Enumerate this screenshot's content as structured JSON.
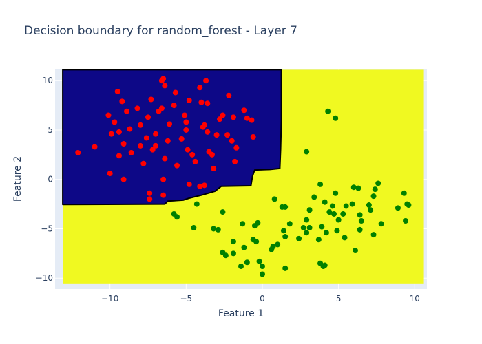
{
  "chart_data": {
    "type": "scatter",
    "title": "Decision boundary for random_forest - Layer 7",
    "xlabel": "Feature 1",
    "ylabel": "Feature 2",
    "xlim": [
      -13.6,
      10.8
    ],
    "ylim": [
      -11.1,
      11.2
    ],
    "x_ticks": [
      -10,
      -5,
      0,
      5,
      10
    ],
    "y_ticks": [
      -10,
      -5,
      0,
      5,
      10
    ],
    "grid": true,
    "colors": {
      "plot_bg": "#e5ecf6",
      "region_class0": "#0d0887",
      "region_class1": "#f0f921",
      "class0_points": "#ff0000",
      "class1_points": "#008000",
      "boundary": "#000000"
    },
    "decision_regions": {
      "x_range": [
        -13.1,
        10.6
      ],
      "y_range": [
        -10.6,
        11.1
      ],
      "class0_region_vertices": [
        [
          -13.1,
          11.1
        ],
        [
          1.25,
          11.1
        ],
        [
          1.25,
          6.0
        ],
        [
          1.2,
          3.0
        ],
        [
          1.15,
          1.1
        ],
        [
          0.5,
          1.0
        ],
        [
          -0.5,
          0.95
        ],
        [
          -0.65,
          0.3
        ],
        [
          -0.75,
          -0.65
        ],
        [
          -2.7,
          -0.7
        ],
        [
          -3.1,
          -1.2
        ],
        [
          -4.0,
          -1.6
        ],
        [
          -4.8,
          -1.9
        ],
        [
          -5.2,
          -2.1
        ],
        [
          -6.2,
          -2.2
        ],
        [
          -6.4,
          -2.5
        ],
        [
          -13.1,
          -2.55
        ]
      ]
    },
    "series": [
      {
        "class": 0,
        "points": [
          [
            -12.1,
            2.7
          ],
          [
            -11.0,
            3.3
          ],
          [
            -10.1,
            6.5
          ],
          [
            -9.9,
            4.6
          ],
          [
            -9.7,
            5.8
          ],
          [
            -9.5,
            8.9
          ],
          [
            -9.4,
            4.8
          ],
          [
            -9.4,
            2.4
          ],
          [
            -10.0,
            0.6
          ],
          [
            -9.2,
            7.9
          ],
          [
            -9.1,
            3.6
          ],
          [
            -9.1,
            0.0
          ],
          [
            -8.9,
            6.9
          ],
          [
            -8.7,
            5.1
          ],
          [
            -8.6,
            2.7
          ],
          [
            -8.2,
            7.2
          ],
          [
            -8.0,
            5.5
          ],
          [
            -8.0,
            3.4
          ],
          [
            -7.8,
            1.6
          ],
          [
            -7.6,
            4.2
          ],
          [
            -7.5,
            6.3
          ],
          [
            -7.3,
            8.1
          ],
          [
            -7.2,
            3.0
          ],
          [
            -7.0,
            4.6
          ],
          [
            -7.0,
            3.4
          ],
          [
            -6.8,
            6.9
          ],
          [
            -6.6,
            7.2
          ],
          [
            -6.5,
            10.2
          ],
          [
            -6.4,
            9.5
          ],
          [
            -6.4,
            2.1
          ],
          [
            -6.5,
            0.0
          ],
          [
            -6.2,
            3.9
          ],
          [
            -6.1,
            5.6
          ],
          [
            -5.8,
            7.5
          ],
          [
            -5.7,
            8.8
          ],
          [
            -5.6,
            1.4
          ],
          [
            -5.3,
            4.1
          ],
          [
            -5.1,
            6.5
          ],
          [
            -5.0,
            5.8
          ],
          [
            -5.0,
            5.0
          ],
          [
            -4.9,
            3.0
          ],
          [
            -4.8,
            8.0
          ],
          [
            -4.6,
            2.5
          ],
          [
            -4.4,
            1.8
          ],
          [
            -4.1,
            9.3
          ],
          [
            -4.0,
            7.8
          ],
          [
            -3.9,
            5.3
          ],
          [
            -3.8,
            5.5
          ],
          [
            -3.7,
            10.0
          ],
          [
            -3.6,
            7.7
          ],
          [
            -3.6,
            4.8
          ],
          [
            -3.5,
            2.8
          ],
          [
            -3.3,
            2.5
          ],
          [
            -3.2,
            1.1
          ],
          [
            -3.0,
            4.5
          ],
          [
            -2.8,
            6.1
          ],
          [
            -2.6,
            6.5
          ],
          [
            -2.3,
            4.5
          ],
          [
            -2.2,
            8.5
          ],
          [
            -2.0,
            3.9
          ],
          [
            -1.9,
            6.3
          ],
          [
            -1.8,
            1.8
          ],
          [
            -1.7,
            3.2
          ],
          [
            -1.2,
            7.0
          ],
          [
            -1.0,
            6.2
          ],
          [
            -0.7,
            6.0
          ],
          [
            -0.6,
            4.3
          ],
          [
            -4.8,
            -0.5
          ],
          [
            -4.1,
            -0.7
          ],
          [
            -3.8,
            -0.6
          ],
          [
            -7.4,
            -1.4
          ],
          [
            -7.4,
            -2.0
          ],
          [
            -6.5,
            -1.6
          ],
          [
            -6.6,
            10.0
          ]
        ]
      },
      {
        "class": 1,
        "points": [
          [
            -5.8,
            -3.5
          ],
          [
            -5.6,
            -3.8
          ],
          [
            -4.5,
            -4.9
          ],
          [
            -4.3,
            -2.5
          ],
          [
            -3.2,
            -5.0
          ],
          [
            -2.9,
            -5.1
          ],
          [
            -2.6,
            -3.3
          ],
          [
            -2.6,
            -7.4
          ],
          [
            -2.4,
            -7.7
          ],
          [
            -1.9,
            -6.3
          ],
          [
            -1.9,
            -7.5
          ],
          [
            -1.3,
            -4.5
          ],
          [
            -1.2,
            -6.9
          ],
          [
            -1.0,
            -8.4
          ],
          [
            -1.4,
            -8.8
          ],
          [
            -0.6,
            -6.1
          ],
          [
            -0.5,
            -4.7
          ],
          [
            -0.3,
            -4.4
          ],
          [
            -0.4,
            -6.3
          ],
          [
            -0.2,
            -8.3
          ],
          [
            0.0,
            -8.8
          ],
          [
            0.0,
            -9.6
          ],
          [
            0.6,
            -7.1
          ],
          [
            0.7,
            -6.8
          ],
          [
            0.8,
            -2.0
          ],
          [
            1.0,
            -6.6
          ],
          [
            1.3,
            -2.8
          ],
          [
            1.4,
            -5.2
          ],
          [
            1.5,
            -2.8
          ],
          [
            1.5,
            -5.8
          ],
          [
            1.5,
            -9.0
          ],
          [
            1.8,
            -4.5
          ],
          [
            2.4,
            -6.0
          ],
          [
            2.7,
            -4.9
          ],
          [
            2.9,
            -5.4
          ],
          [
            2.9,
            -4.1
          ],
          [
            3.1,
            -3.1
          ],
          [
            3.1,
            -4.9
          ],
          [
            3.4,
            -1.8
          ],
          [
            3.7,
            -6.1
          ],
          [
            3.8,
            -8.5
          ],
          [
            3.8,
            -0.5
          ],
          [
            3.9,
            -4.8
          ],
          [
            4.0,
            -8.8
          ],
          [
            4.1,
            -8.7
          ],
          [
            4.1,
            -2.3
          ],
          [
            4.2,
            -5.4
          ],
          [
            4.4,
            -3.3
          ],
          [
            4.6,
            -2.7
          ],
          [
            4.7,
            -3.5
          ],
          [
            4.8,
            -1.4
          ],
          [
            4.9,
            -5.2
          ],
          [
            5.0,
            -4.1
          ],
          [
            5.3,
            -3.5
          ],
          [
            5.4,
            -5.9
          ],
          [
            5.5,
            -2.7
          ],
          [
            5.9,
            -2.5
          ],
          [
            6.0,
            -0.8
          ],
          [
            6.1,
            -7.2
          ],
          [
            6.3,
            -0.9
          ],
          [
            6.4,
            -3.6
          ],
          [
            6.4,
            -5.1
          ],
          [
            6.5,
            -4.2
          ],
          [
            7.0,
            -2.6
          ],
          [
            7.1,
            -3.1
          ],
          [
            7.3,
            -1.7
          ],
          [
            7.3,
            -5.6
          ],
          [
            7.4,
            -1.0
          ],
          [
            7.6,
            -0.4
          ],
          [
            7.8,
            -4.5
          ],
          [
            8.9,
            -2.9
          ],
          [
            9.3,
            -1.4
          ],
          [
            9.4,
            -4.2
          ],
          [
            9.5,
            -2.5
          ],
          [
            9.6,
            -2.6
          ],
          [
            2.9,
            2.8
          ],
          [
            4.3,
            6.9
          ],
          [
            4.8,
            6.2
          ]
        ]
      }
    ]
  }
}
